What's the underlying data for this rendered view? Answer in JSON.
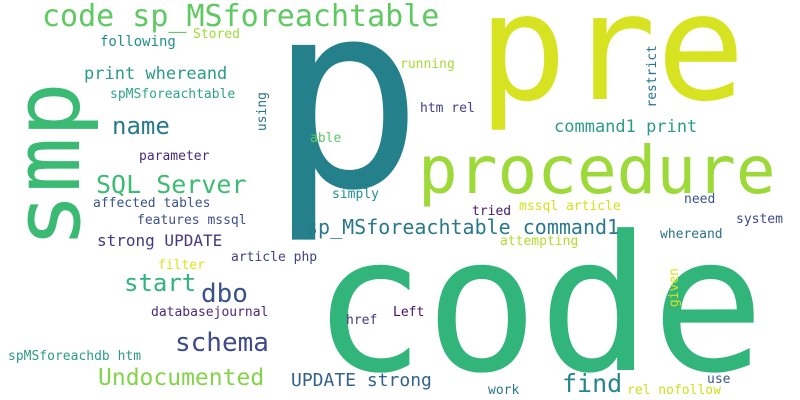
{
  "words": [
    {
      "text": "p",
      "color": "#24818b"
    },
    {
      "text": "pre",
      "color": "#d7e220"
    },
    {
      "text": "code",
      "color": "#31b57b"
    },
    {
      "text": "smp",
      "color": "#3bba74"
    },
    {
      "text": "procedure",
      "color": "#9ed93a"
    },
    {
      "text": "code sp_MSforeachtable",
      "color": "#5fc962"
    },
    {
      "text": "SQL Server",
      "color": "#3cbb73"
    },
    {
      "text": "sp_MSforeachtable command1",
      "color": "#2a788e"
    },
    {
      "text": "Undocumented",
      "color": "#84d44b"
    },
    {
      "text": "schema",
      "color": "#3e4a89"
    },
    {
      "text": "dbo",
      "color": "#3b528b"
    },
    {
      "text": "start",
      "color": "#2fb47c"
    },
    {
      "text": "name",
      "color": "#29798e"
    },
    {
      "text": "find",
      "color": "#24868e"
    },
    {
      "text": "UPDATE strong",
      "color": "#33628d"
    },
    {
      "text": "print whereand",
      "color": "#2b9c85"
    },
    {
      "text": "command1 print",
      "color": "#2b9c85"
    },
    {
      "text": "strong UPDATE",
      "color": "#443983"
    },
    {
      "text": "spMSforeachtable",
      "color": "#2ca684"
    },
    {
      "text": "following",
      "color": "#208f8c"
    },
    {
      "text": "Stored",
      "color": "#9fda3a"
    },
    {
      "text": "affected tables",
      "color": "#3a538b"
    },
    {
      "text": "features mssql",
      "color": "#3d4e8a"
    },
    {
      "text": "parameter",
      "color": "#472b7a"
    },
    {
      "text": "article php",
      "color": "#414287"
    },
    {
      "text": "databasejournal",
      "color": "#472d7b"
    },
    {
      "text": "filter",
      "color": "#dde318"
    },
    {
      "text": "spMSforeachdb htm",
      "color": "#2b9c85"
    },
    {
      "text": "running",
      "color": "#a8db34"
    },
    {
      "text": "htm rel",
      "color": "#433e85"
    },
    {
      "text": "able",
      "color": "#5cc863"
    },
    {
      "text": "simply",
      "color": "#21908d"
    },
    {
      "text": "tried",
      "color": "#481769"
    },
    {
      "text": "mssql article",
      "color": "#d2e21b"
    },
    {
      "text": "attempting",
      "color": "#b2dd2d"
    },
    {
      "text": "need",
      "color": "#3a538b"
    },
    {
      "text": "system",
      "color": "#3e4989"
    },
    {
      "text": "whereand",
      "color": "#2c718e"
    },
    {
      "text": "Left",
      "color": "#471365"
    },
    {
      "text": "href",
      "color": "#453882"
    },
    {
      "text": "work",
      "color": "#2a788e"
    },
    {
      "text": "rel nofollow",
      "color": "#cde11d"
    },
    {
      "text": "use",
      "color": "#39558c"
    },
    {
      "text": "using",
      "color": "#2c728e"
    },
    {
      "text": "restrict",
      "color": "#2c728e"
    },
    {
      "text": "given",
      "color": "#d8e219"
    }
  ]
}
